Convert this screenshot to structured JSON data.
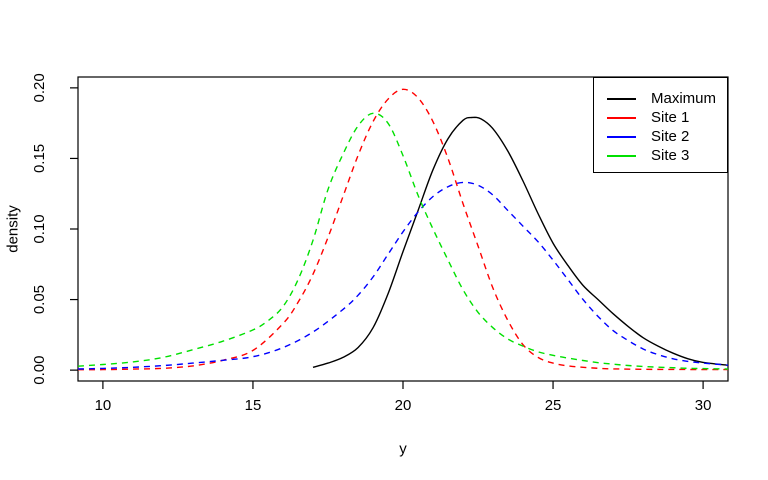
{
  "chart_data": {
    "type": "line",
    "title": "",
    "xlabel": "y",
    "ylabel": "density",
    "xlim": [
      9.17,
      30.83
    ],
    "ylim": [
      -0.0077,
      0.2077
    ],
    "grid": false,
    "x_ticks": [
      {
        "v": 10,
        "label": "10"
      },
      {
        "v": 15,
        "label": "15"
      },
      {
        "v": 20,
        "label": "20"
      },
      {
        "v": 25,
        "label": "25"
      },
      {
        "v": 30,
        "label": "30"
      }
    ],
    "y_ticks": [
      {
        "v": 0.0,
        "label": "0.00"
      },
      {
        "v": 0.05,
        "label": "0.05"
      },
      {
        "v": 0.1,
        "label": "0.10"
      },
      {
        "v": 0.15,
        "label": "0.15"
      },
      {
        "v": 0.2,
        "label": "0.20"
      }
    ],
    "legend": {
      "position": "topright",
      "entries": [
        {
          "label": "Maximum",
          "color": "#000000"
        },
        {
          "label": "Site 1",
          "color": "#FF0000"
        },
        {
          "label": "Site 2",
          "color": "#0000FF"
        },
        {
          "label": "Site 3",
          "color": "#00E000"
        }
      ]
    },
    "series": [
      {
        "name": "Maximum",
        "color": "#000000",
        "style": "solid",
        "points": [
          [
            17,
            0.002
          ],
          [
            17.5,
            0.005
          ],
          [
            18,
            0.009
          ],
          [
            18.5,
            0.016
          ],
          [
            19,
            0.03
          ],
          [
            19.5,
            0.054
          ],
          [
            20,
            0.084
          ],
          [
            20.5,
            0.113
          ],
          [
            21,
            0.142
          ],
          [
            21.5,
            0.164
          ],
          [
            22,
            0.177
          ],
          [
            22.3,
            0.179
          ],
          [
            22.6,
            0.178
          ],
          [
            23,
            0.171
          ],
          [
            23.5,
            0.155
          ],
          [
            24,
            0.134
          ],
          [
            24.5,
            0.111
          ],
          [
            25,
            0.09
          ],
          [
            25.5,
            0.074
          ],
          [
            26,
            0.06
          ],
          [
            26.5,
            0.05
          ],
          [
            27,
            0.04
          ],
          [
            27.5,
            0.031
          ],
          [
            28,
            0.023
          ],
          [
            28.5,
            0.017
          ],
          [
            29,
            0.012
          ],
          [
            29.5,
            0.008
          ],
          [
            30,
            0.0055
          ],
          [
            30.83,
            0.0035
          ]
        ]
      },
      {
        "name": "Site 1",
        "color": "#FF0000",
        "style": "dashed",
        "points": [
          [
            9.17,
            0.0003
          ],
          [
            10,
            0.0004
          ],
          [
            11,
            0.0007
          ],
          [
            12,
            0.0013
          ],
          [
            13,
            0.003
          ],
          [
            14,
            0.007
          ],
          [
            15,
            0.014
          ],
          [
            16,
            0.033
          ],
          [
            16.5,
            0.048
          ],
          [
            17,
            0.068
          ],
          [
            17.5,
            0.094
          ],
          [
            18,
            0.123
          ],
          [
            18.5,
            0.152
          ],
          [
            19,
            0.176
          ],
          [
            19.5,
            0.192
          ],
          [
            20,
            0.199
          ],
          [
            20.5,
            0.193
          ],
          [
            21,
            0.176
          ],
          [
            21.5,
            0.15
          ],
          [
            22,
            0.118
          ],
          [
            22.5,
            0.088
          ],
          [
            23,
            0.058
          ],
          [
            23.5,
            0.035
          ],
          [
            24,
            0.018
          ],
          [
            24.5,
            0.009
          ],
          [
            25,
            0.005
          ],
          [
            25.5,
            0.003
          ],
          [
            26,
            0.002
          ],
          [
            26.5,
            0.0013
          ],
          [
            27,
            0.0009
          ],
          [
            28,
            0.0006
          ],
          [
            29,
            0.0005
          ],
          [
            30,
            0.0004
          ],
          [
            30.83,
            0.0004
          ]
        ]
      },
      {
        "name": "Site 2",
        "color": "#0000FF",
        "style": "dashed",
        "points": [
          [
            9.17,
            0.0008
          ],
          [
            10,
            0.0012
          ],
          [
            11,
            0.002
          ],
          [
            12,
            0.0032
          ],
          [
            13,
            0.005
          ],
          [
            14,
            0.007
          ],
          [
            15,
            0.0095
          ],
          [
            16,
            0.016
          ],
          [
            17,
            0.027
          ],
          [
            18,
            0.043
          ],
          [
            18.5,
            0.053
          ],
          [
            19,
            0.066
          ],
          [
            19.5,
            0.082
          ],
          [
            20,
            0.098
          ],
          [
            20.5,
            0.112
          ],
          [
            21,
            0.123
          ],
          [
            21.5,
            0.13
          ],
          [
            22,
            0.133
          ],
          [
            22.5,
            0.131
          ],
          [
            23,
            0.124
          ],
          [
            23.5,
            0.113
          ],
          [
            24,
            0.102
          ],
          [
            24.5,
            0.091
          ],
          [
            25,
            0.078
          ],
          [
            25.5,
            0.064
          ],
          [
            26,
            0.05
          ],
          [
            26.5,
            0.038
          ],
          [
            27,
            0.028
          ],
          [
            27.5,
            0.021
          ],
          [
            28,
            0.015
          ],
          [
            28.5,
            0.011
          ],
          [
            29,
            0.008
          ],
          [
            29.5,
            0.0062
          ],
          [
            30,
            0.005
          ],
          [
            30.83,
            0.0035
          ]
        ]
      },
      {
        "name": "Site 3",
        "color": "#00E000",
        "style": "dashed",
        "points": [
          [
            9.17,
            0.0028
          ],
          [
            10,
            0.004
          ],
          [
            11,
            0.0058
          ],
          [
            12,
            0.009
          ],
          [
            13,
            0.0145
          ],
          [
            14,
            0.0205
          ],
          [
            15,
            0.0285
          ],
          [
            15.5,
            0.035
          ],
          [
            16,
            0.045
          ],
          [
            16.5,
            0.064
          ],
          [
            17,
            0.092
          ],
          [
            17.5,
            0.128
          ],
          [
            18,
            0.153
          ],
          [
            18.5,
            0.173
          ],
          [
            19,
            0.182
          ],
          [
            19.5,
            0.175
          ],
          [
            20,
            0.152
          ],
          [
            20.5,
            0.124
          ],
          [
            21,
            0.1
          ],
          [
            21.5,
            0.078
          ],
          [
            22,
            0.057
          ],
          [
            22.5,
            0.041
          ],
          [
            23,
            0.03
          ],
          [
            23.5,
            0.022
          ],
          [
            24,
            0.017
          ],
          [
            24.5,
            0.013
          ],
          [
            25,
            0.0105
          ],
          [
            25.5,
            0.0085
          ],
          [
            26,
            0.0068
          ],
          [
            26.5,
            0.0053
          ],
          [
            27,
            0.0042
          ],
          [
            27.5,
            0.0033
          ],
          [
            28,
            0.0026
          ],
          [
            28.5,
            0.0021
          ],
          [
            29,
            0.0017
          ],
          [
            29.5,
            0.0013
          ],
          [
            30,
            0.0011
          ],
          [
            30.83,
            0.0008
          ]
        ]
      }
    ]
  }
}
